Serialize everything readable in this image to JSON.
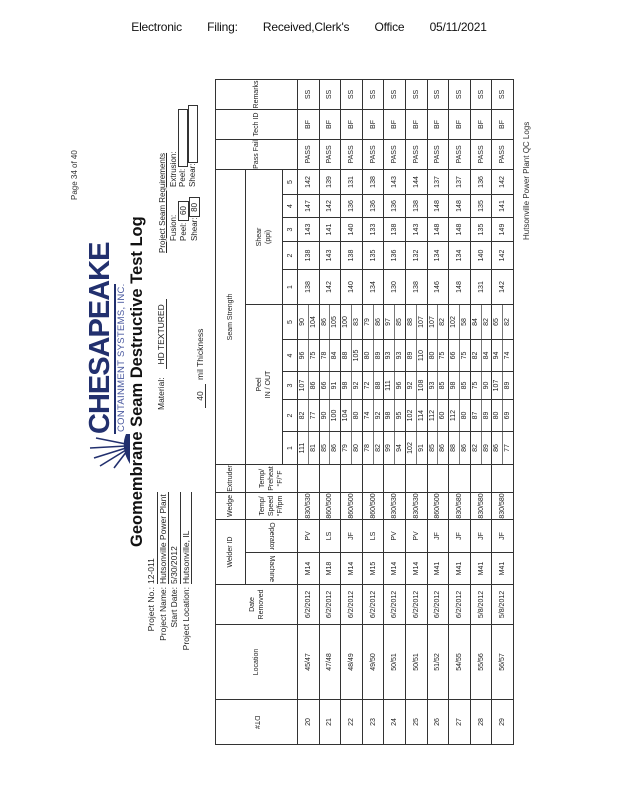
{
  "filing_header": [
    "Electronic",
    "Filing:",
    "Received,Clerk's",
    "Office",
    "05/11/2021"
  ],
  "page_number": "Page 34 of 40",
  "footer": "Hutsonville Power Plant QC Logs",
  "logo": {
    "name": "CHESAPEAKE",
    "subtitle": "CONTAINMENT SYSTEMS, INC.",
    "color": "#22306e"
  },
  "title": "Geomembrane Seam Destructive Test Log",
  "project": {
    "no_label": "Project No.:",
    "no": "12-011",
    "name_label": "Project Name:",
    "name": "Hutsonville Power Plant",
    "start_label": "Start Date:",
    "start": "5/30/2012",
    "location_label": "Project Location:",
    "location": "Hutsonville, IL"
  },
  "material": {
    "label": "Material:",
    "value": "HD TEXTURED"
  },
  "thickness": {
    "value": "40",
    "label": "mil Thickness"
  },
  "requirements": {
    "heading": "Project Seam Requirements",
    "fusion_label": "Fusion:",
    "extrusion_label": "Extrusion:",
    "peel_label": "Peel:",
    "shear_label": "Shear:",
    "fusion_peel": "60",
    "fusion_shear": "80",
    "extrusion_peel": "",
    "extrusion_shear": ""
  },
  "table": {
    "headers": {
      "dt": "DT#",
      "location": "Location",
      "date": "Date Removed",
      "welder": "Welder ID",
      "machine": "Machine",
      "operator": "Operator",
      "wedge": "Wedge",
      "wedge_sub": "Temp/ Speed °F/fpm",
      "extruder": "Extruder",
      "extruder_sub": "Temp/ Preheat °F/°F",
      "seam": "Seam Strength",
      "peel": "Peel",
      "peel_sub": "IN / OUT",
      "shear": "Shear",
      "shear_sub": "(ppi)",
      "pass": "Pass Fail",
      "tech": "Tech ID",
      "remarks": "Remarks",
      "nums": [
        "1",
        "2",
        "3",
        "4",
        "5"
      ]
    },
    "rows": [
      {
        "dt": "20",
        "location": "45/47",
        "date": "6/2/2012",
        "machine": "M14",
        "operator": "PV",
        "wedge": "830/530",
        "extruder": "",
        "peel_in": [
          "111",
          "82",
          "107",
          "96",
          "90"
        ],
        "peel_out": [
          "81",
          "77",
          "86",
          "75",
          "104"
        ],
        "shear": [
          "138",
          "138",
          "143",
          "147",
          "142"
        ],
        "result": "PASS",
        "tech": "BF",
        "remarks": "SS"
      },
      {
        "dt": "21",
        "location": "47/48",
        "date": "6/2/2012",
        "machine": "M18",
        "operator": "LS",
        "wedge": "860/500",
        "extruder": "",
        "peel_in": [
          "85",
          "90",
          "66",
          "78",
          "86"
        ],
        "peel_out": [
          "86",
          "100",
          "91",
          "84",
          "105"
        ],
        "shear": [
          "142",
          "143",
          "141",
          "142",
          "139"
        ],
        "result": "PASS",
        "tech": "BF",
        "remarks": "SS"
      },
      {
        "dt": "22",
        "location": "48/49",
        "date": "6/2/2012",
        "machine": "M14",
        "operator": "JF",
        "wedge": "860/500",
        "extruder": "",
        "peel_in": [
          "79",
          "104",
          "98",
          "88",
          "100"
        ],
        "peel_out": [
          "80",
          "80",
          "92",
          "105",
          "83"
        ],
        "shear": [
          "140",
          "138",
          "140",
          "136",
          "131"
        ],
        "result": "PASS",
        "tech": "BF",
        "remarks": "SS"
      },
      {
        "dt": "23",
        "location": "49/50",
        "date": "6/2/2012",
        "machine": "M15",
        "operator": "LS",
        "wedge": "860/500",
        "extruder": "",
        "peel_in": [
          "78",
          "74",
          "72",
          "80",
          "79"
        ],
        "peel_out": [
          "82",
          "92",
          "88",
          "89",
          "86"
        ],
        "shear": [
          "134",
          "135",
          "133",
          "136",
          "138"
        ],
        "result": "PASS",
        "tech": "BF",
        "remarks": "SS"
      },
      {
        "dt": "24",
        "location": "50/51",
        "date": "6/2/2012",
        "machine": "M14",
        "operator": "PV",
        "wedge": "830/530",
        "extruder": "",
        "peel_in": [
          "99",
          "98",
          "111",
          "93",
          "97"
        ],
        "peel_out": [
          "94",
          "95",
          "96",
          "93",
          "85"
        ],
        "shear": [
          "130",
          "136",
          "138",
          "136",
          "143"
        ],
        "result": "PASS",
        "tech": "BF",
        "remarks": "SS"
      },
      {
        "dt": "25",
        "location": "50/51",
        "date": "6/2/2012",
        "machine": "M14",
        "operator": "PV",
        "wedge": "830/530",
        "extruder": "",
        "peel_in": [
          "102",
          "102",
          "92",
          "89",
          "88"
        ],
        "peel_out": [
          "91",
          "114",
          "108",
          "110",
          "107"
        ],
        "shear": [
          "138",
          "132",
          "143",
          "138",
          "144"
        ],
        "result": "PASS",
        "tech": "BF",
        "remarks": "SS"
      },
      {
        "dt": "26",
        "location": "51/52",
        "date": "6/2/2012",
        "machine": "M41",
        "operator": "JF",
        "wedge": "860/500",
        "extruder": "",
        "peel_in": [
          "85",
          "112",
          "93",
          "80",
          "107"
        ],
        "peel_out": [
          "86",
          "60",
          "85",
          "75",
          "82"
        ],
        "shear": [
          "146",
          "134",
          "148",
          "148",
          "137"
        ],
        "result": "PASS",
        "tech": "BF",
        "remarks": "SS"
      },
      {
        "dt": "27",
        "location": "54/55",
        "date": "6/2/2012",
        "machine": "M41",
        "operator": "JF",
        "wedge": "830/580",
        "extruder": "",
        "peel_in": [
          "88",
          "112",
          "98",
          "66",
          "102"
        ],
        "peel_out": [
          "86",
          "80",
          "85",
          "75",
          "58"
        ],
        "shear": [
          "148",
          "134",
          "148",
          "148",
          "137"
        ],
        "result": "PASS",
        "tech": "BF",
        "remarks": "SS"
      },
      {
        "dt": "28",
        "location": "55/56",
        "date": "5/8/2012",
        "machine": "M41",
        "operator": "JF",
        "wedge": "830/580",
        "extruder": "",
        "peel_in": [
          "82",
          "87",
          "75",
          "82",
          "84"
        ],
        "peel_out": [
          "89",
          "89",
          "90",
          "84",
          "82"
        ],
        "shear": [
          "131",
          "140",
          "135",
          "135",
          "136"
        ],
        "result": "PASS",
        "tech": "BF",
        "remarks": "SS"
      },
      {
        "dt": "29",
        "location": "56/57",
        "date": "5/8/2012",
        "machine": "M41",
        "operator": "JF",
        "wedge": "830/580",
        "extruder": "",
        "peel_in": [
          "86",
          "80",
          "107",
          "94",
          "65"
        ],
        "peel_out": [
          "77",
          "69",
          "89",
          "74",
          "82"
        ],
        "shear": [
          "142",
          "142",
          "149",
          "141",
          "142"
        ],
        "result": "PASS",
        "tech": "BF",
        "remarks": "SS"
      }
    ]
  }
}
